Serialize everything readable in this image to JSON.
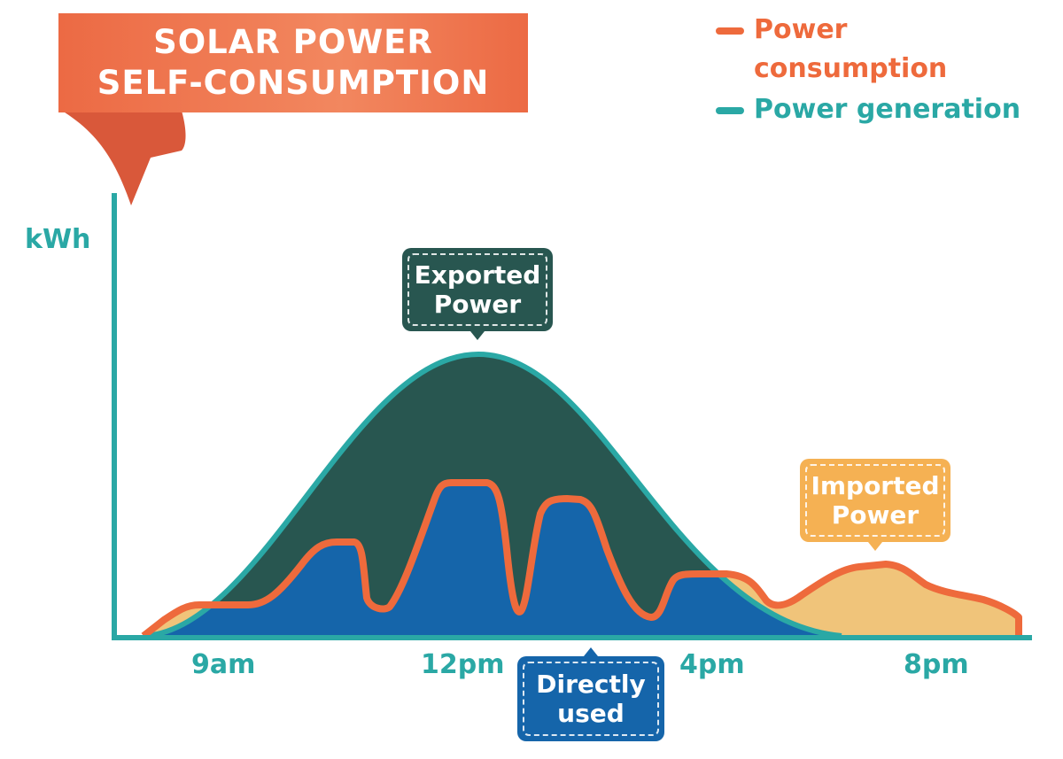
{
  "title": {
    "line1": "SOLAR POWER",
    "line2": "SELF-CONSUMPTION"
  },
  "legend": [
    {
      "label_line1": "Power",
      "label_line2": "consumption",
      "color": "#ee6a3c"
    },
    {
      "label_line1": "Power generation",
      "color": "#2aa8a5"
    }
  ],
  "axis": {
    "y_label": "kWh",
    "x_ticks": [
      "9am",
      "12pm",
      "4pm",
      "8pm"
    ]
  },
  "callouts": {
    "exported": {
      "line1": "Exported",
      "line2": "Power",
      "color": "#285650"
    },
    "directly_used": {
      "line1": "Directly",
      "line2": "used",
      "color": "#1565aa"
    },
    "imported": {
      "line1": "Imported",
      "line2": "Power",
      "color": "#f5b153"
    }
  },
  "colors": {
    "axis": "#2aa8a5",
    "imported_fill": "#f0c47a",
    "banner": "#ec6a44"
  }
}
